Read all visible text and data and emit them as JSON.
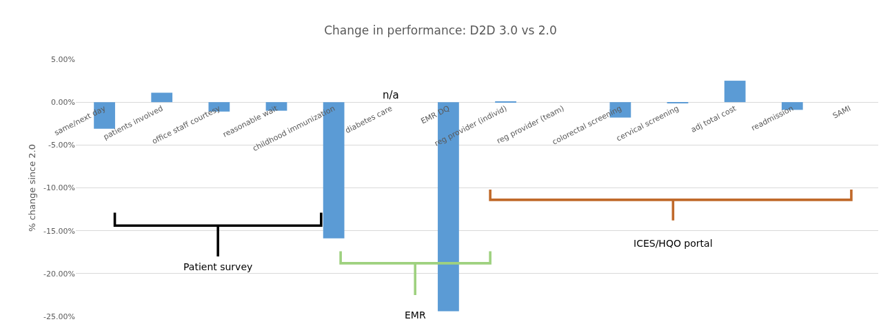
{
  "chart_data": {
    "type": "bar",
    "title": "Change in performance: D2D 3.0 vs 2.0",
    "ylabel": "% change since 2.0",
    "categories": [
      "same/next day",
      "patients involved",
      "office staff courtesy",
      "reasonable wait",
      "childhood immunization",
      "diabetes care",
      "EMR DQ",
      "reg provider (individ)",
      "reg provider (team)",
      "colorectal screening",
      "cervical screening",
      "adj total cost",
      "readmission",
      "SAMI"
    ],
    "values": [
      -3.1,
      1.1,
      -1.1,
      -1.0,
      -15.9,
      null,
      -24.4,
      0.1,
      0,
      -1.8,
      -0.1,
      2.5,
      -0.9,
      0
    ],
    "color": "#5b9bd5",
    "ylim": [
      -25,
      5
    ],
    "yticks": [
      {
        "value": -25,
        "label": "-25.00%"
      },
      {
        "value": -20,
        "label": "-20.00%"
      },
      {
        "value": -15,
        "label": "-15.00%"
      },
      {
        "value": -10,
        "label": "-10.00%"
      },
      {
        "value": -5,
        "label": "-5.00%"
      },
      {
        "value": 0,
        "label": "0.00%"
      },
      {
        "value": 5,
        "label": "5.00%"
      }
    ],
    "grid": "y",
    "annotations": [
      "n/a",
      "Patient survey",
      "EMR",
      "ICES/HQO portal"
    ]
  }
}
